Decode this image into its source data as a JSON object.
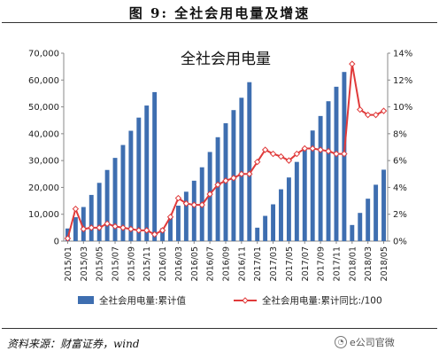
{
  "figure_label": "图 9:  全社会用电量及增速",
  "source_text": "资料来源：财富证券，wind",
  "watermark": "e公司官微",
  "colors": {
    "bar": "#3E6EB0",
    "line": "#E03A3A",
    "marker_fill": "#FFFFFF"
  },
  "chart_data": {
    "type": "bar+line",
    "title": "全社会用电量",
    "categories": [
      "2015/01",
      "2015/02",
      "2015/03",
      "2015/04",
      "2015/05",
      "2015/06",
      "2015/07",
      "2015/08",
      "2015/09",
      "2015/10",
      "2015/11",
      "2015/12",
      "2016/01",
      "2016/02",
      "2016/03",
      "2016/04",
      "2016/05",
      "2016/06",
      "2016/07",
      "2016/08",
      "2016/09",
      "2016/10",
      "2016/11",
      "2016/12",
      "2017/01",
      "2017/02",
      "2017/03",
      "2017/04",
      "2017/05",
      "2017/06",
      "2017/07",
      "2017/08",
      "2017/09",
      "2017/10",
      "2017/11",
      "2017/12",
      "2018/01",
      "2018/02",
      "2018/03",
      "2018/04",
      "2018/05"
    ],
    "tick_labels": [
      "2015/01",
      "2015/03",
      "2015/05",
      "2015/07",
      "2015/09",
      "2015/11",
      "2016/01",
      "2016/03",
      "2016/05",
      "2016/07",
      "2016/09",
      "2016/11",
      "2017/01",
      "2017/03",
      "2017/05",
      "2017/07",
      "2017/09",
      "2017/11",
      "2018/01",
      "2018/03",
      "2018/05"
    ],
    "series": [
      {
        "name": "全社会用电量:累计值",
        "type": "bar",
        "axis": "left",
        "values": [
          4700,
          8900,
          12700,
          17200,
          21700,
          26500,
          31000,
          35800,
          41100,
          46000,
          50500,
          55500,
          4800,
          9200,
          13200,
          18400,
          22500,
          27500,
          33200,
          38700,
          43900,
          48800,
          53400,
          59200,
          5000,
          9400,
          13700,
          19300,
          23700,
          29500,
          35000,
          41200,
          46600,
          52100,
          57500,
          63000,
          6000,
          10500,
          15800,
          21000,
          26600
        ]
      },
      {
        "name": "全社会用电量:累计同比:/100",
        "type": "line",
        "axis": "right",
        "values": [
          0.2,
          2.4,
          0.9,
          1.0,
          1.0,
          1.3,
          1.1,
          1.0,
          0.9,
          0.8,
          0.8,
          0.5,
          0.8,
          1.8,
          3.2,
          2.8,
          2.7,
          2.7,
          3.5,
          4.2,
          4.5,
          4.7,
          5.0,
          5.0,
          5.9,
          6.8,
          6.5,
          6.3,
          6.0,
          6.5,
          6.9,
          6.9,
          6.8,
          6.7,
          6.5,
          6.5,
          13.2,
          9.8,
          9.4,
          9.4,
          9.7
        ]
      }
    ],
    "y_left": {
      "range": [
        0,
        70000
      ],
      "ticks": [
        "0",
        "10,000",
        "20,000",
        "30,000",
        "40,000",
        "50,000",
        "60,000",
        "70,000"
      ]
    },
    "y_right": {
      "range": [
        0,
        14
      ],
      "ticks": [
        "0%",
        "2%",
        "4%",
        "6%",
        "8%",
        "10%",
        "12%",
        "14%"
      ]
    },
    "legend_position": "bottom",
    "grid": false
  }
}
